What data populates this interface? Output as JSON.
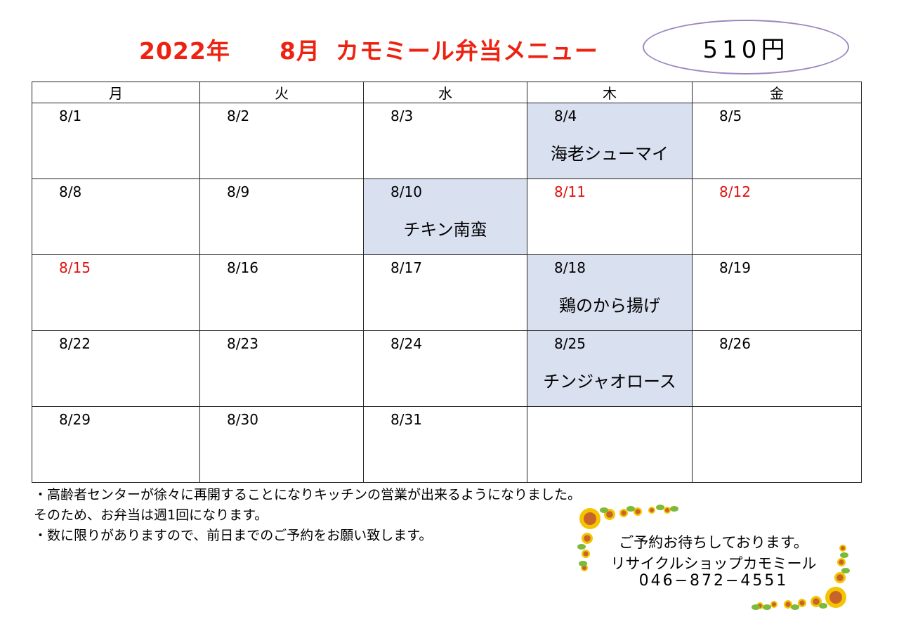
{
  "title": {
    "year": "2022年",
    "month": "8月",
    "name": "カモミール弁当メニュー",
    "color": "#ee2211"
  },
  "price": "510円",
  "weekdays": [
    "月",
    "火",
    "水",
    "木",
    "金"
  ],
  "highlight_color": "#d9e0f0",
  "holiday_color": "#e01010",
  "weeks": [
    [
      {
        "date": "8/1"
      },
      {
        "date": "8/2"
      },
      {
        "date": "8/3"
      },
      {
        "date": "8/4",
        "menu": "海老シューマイ",
        "highlight": true
      },
      {
        "date": "8/5"
      }
    ],
    [
      {
        "date": "8/8"
      },
      {
        "date": "8/9"
      },
      {
        "date": "8/10",
        "menu": "チキン南蛮",
        "highlight": true
      },
      {
        "date": "8/11",
        "holiday": true
      },
      {
        "date": "8/12",
        "holiday": true
      }
    ],
    [
      {
        "date": "8/15",
        "holiday": true
      },
      {
        "date": "8/16"
      },
      {
        "date": "8/17"
      },
      {
        "date": "8/18",
        "menu": "鶏のから揚げ",
        "highlight": true
      },
      {
        "date": "8/19"
      }
    ],
    [
      {
        "date": "8/22"
      },
      {
        "date": "8/23"
      },
      {
        "date": "8/24"
      },
      {
        "date": "8/25",
        "menu": "チンジャオロース",
        "highlight": true
      },
      {
        "date": "8/26"
      }
    ],
    [
      {
        "date": "8/29"
      },
      {
        "date": "8/30"
      },
      {
        "date": "8/31"
      },
      {
        "date": ""
      },
      {
        "date": ""
      }
    ]
  ],
  "notes": [
    "・高齢者センターが徐々に再開することになりキッチンの営業が出来るようになりました。",
    "そのため、お弁当は週1回になります。",
    "・数に限りがありますので、前日までのご予約をお願い致します。"
  ],
  "contact": {
    "message": "ご予約お待ちしております。",
    "shop": "リサイクルショップカモミール",
    "phone": "046−872−4551",
    "decoration": "sunflower-border"
  }
}
